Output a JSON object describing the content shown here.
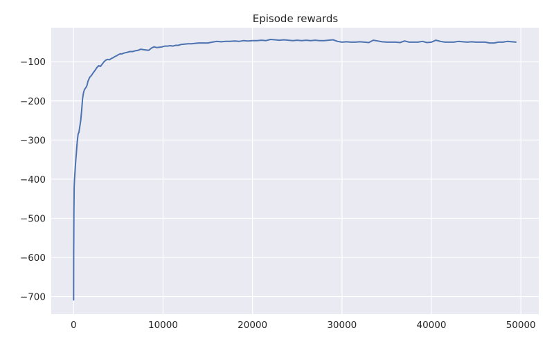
{
  "chart_data": {
    "type": "line",
    "title": "Episode rewards",
    "xlabel": "",
    "ylabel": "",
    "xlim": [
      -2500,
      52000
    ],
    "ylim": [
      -745,
      -13
    ],
    "xticks": [
      0,
      10000,
      20000,
      30000,
      40000,
      50000
    ],
    "xtick_labels": [
      "0",
      "10000",
      "20000",
      "30000",
      "40000",
      "50000"
    ],
    "yticks": [
      -700,
      -600,
      -500,
      -400,
      -300,
      -200,
      -100
    ],
    "ytick_labels": [
      "−700",
      "−600",
      "−500",
      "−400",
      "−300",
      "−200",
      "−100"
    ],
    "grid": true,
    "legend": false,
    "colors": {
      "background": "#eaeaf2",
      "grid": "#ffffff",
      "line": "#4c72b0"
    },
    "series": [
      {
        "x": [
          0,
          10,
          30,
          60,
          100,
          150,
          200,
          250,
          300,
          400,
          500,
          600,
          700,
          800,
          900,
          1000,
          1100,
          1200,
          1300,
          1400,
          1500,
          1600,
          1800,
          2000,
          2200,
          2400,
          2600,
          2800,
          3000,
          3200,
          3400,
          3600,
          3800,
          4000,
          4200,
          4400,
          4600,
          4800,
          5000,
          5200,
          5400,
          5600,
          5800,
          6000,
          6300,
          6600,
          6900,
          7200,
          7500,
          7800,
          8100,
          8400,
          8700,
          9000,
          9300,
          9600,
          9900,
          10200,
          10500,
          10800,
          11100,
          11400,
          11700,
          12000,
          12400,
          12800,
          13200,
          13600,
          14000,
          14500,
          15000,
          15500,
          16000,
          16500,
          17000,
          17500,
          18000,
          18500,
          19000,
          19500,
          20000,
          20500,
          21000,
          21500,
          22000,
          22500,
          23000,
          23500,
          24000,
          24500,
          25000,
          25500,
          26000,
          26500,
          27000,
          27500,
          28000,
          28500,
          29000,
          29500,
          30000,
          30500,
          31000,
          31500,
          32000,
          32500,
          33000,
          33500,
          34000,
          34500,
          35000,
          35500,
          36000,
          36500,
          37000,
          37500,
          38000,
          38500,
          39000,
          39500,
          40000,
          40500,
          41000,
          41500,
          42000,
          42500,
          43000,
          43500,
          44000,
          44500,
          45000,
          45500,
          46000,
          46500,
          47000,
          47500,
          48000,
          48500,
          49000,
          49500
        ],
        "values": [
          -710,
          -600,
          -490,
          -420,
          -400,
          -385,
          -365,
          -350,
          -335,
          -305,
          -285,
          -280,
          -265,
          -250,
          -225,
          -195,
          -180,
          -172,
          -168,
          -165,
          -160,
          -150,
          -140,
          -135,
          -128,
          -122,
          -115,
          -110,
          -112,
          -106,
          -100,
          -96,
          -94,
          -95,
          -92,
          -90,
          -87,
          -85,
          -82,
          -80,
          -80,
          -78,
          -77,
          -76,
          -74,
          -74,
          -72,
          -71,
          -68,
          -69,
          -70,
          -71,
          -65,
          -62,
          -64,
          -63,
          -62,
          -60,
          -60,
          -59,
          -60,
          -58,
          -58,
          -56,
          -55,
          -54,
          -54,
          -53,
          -52,
          -52,
          -52,
          -50,
          -48,
          -49,
          -48,
          -48,
          -47,
          -48,
          -46,
          -47,
          -46,
          -46,
          -45,
          -46,
          -43,
          -44,
          -45,
          -44,
          -45,
          -46,
          -45,
          -46,
          -45,
          -46,
          -45,
          -46,
          -46,
          -45,
          -44,
          -48,
          -50,
          -49,
          -50,
          -50,
          -49,
          -50,
          -51,
          -45,
          -47,
          -49,
          -50,
          -50,
          -50,
          -51,
          -47,
          -50,
          -50,
          -50,
          -48,
          -51,
          -50,
          -45,
          -48,
          -50,
          -50,
          -50,
          -48,
          -49,
          -50,
          -49,
          -50,
          -50,
          -50,
          -52,
          -52,
          -50,
          -50,
          -48,
          -49,
          -50
        ]
      }
    ]
  }
}
